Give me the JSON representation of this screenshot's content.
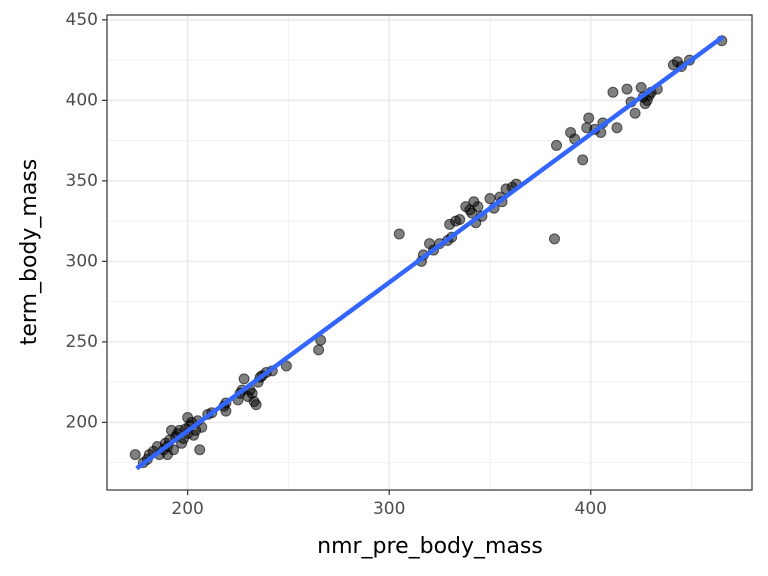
{
  "chart_data": {
    "type": "scatter",
    "x_label": "nmr_pre_body_mass",
    "y_label": "term_body_mass",
    "x": [
      174,
      178,
      180,
      181,
      183,
      185,
      186,
      188,
      189,
      190,
      190,
      191,
      192,
      193,
      194,
      195,
      196,
      197,
      198,
      199,
      200,
      200,
      201,
      202,
      203,
      204,
      205,
      206,
      207,
      210,
      212,
      218,
      219,
      219,
      225,
      226,
      227,
      228,
      230,
      231,
      232,
      233,
      234,
      235,
      236,
      237,
      239,
      242,
      249,
      265,
      266,
      305,
      316,
      317,
      320,
      322,
      325,
      329,
      330,
      331,
      333,
      335,
      338,
      340,
      341,
      342,
      343,
      344,
      346,
      350,
      352,
      355,
      356,
      358,
      361,
      363,
      382,
      383,
      390,
      392,
      396,
      398,
      399,
      402,
      405,
      406,
      411,
      413,
      418,
      420,
      422,
      425,
      426,
      427,
      428,
      429,
      430,
      433,
      441,
      443,
      445,
      449,
      465
    ],
    "values": [
      180,
      175,
      177,
      180,
      182,
      185,
      180,
      183,
      187,
      180,
      185,
      189,
      195,
      183,
      191,
      193,
      195,
      187,
      190,
      196,
      203,
      193,
      198,
      200,
      192,
      195,
      201,
      183,
      197,
      205,
      206,
      210,
      207,
      212,
      214,
      218,
      220,
      227,
      216,
      220,
      218,
      213,
      211,
      225,
      228,
      229,
      231,
      232,
      235,
      245,
      251,
      317,
      300,
      304,
      311,
      307,
      311,
      313,
      323,
      315,
      325,
      326,
      334,
      332,
      330,
      337,
      324,
      334,
      328,
      339,
      333,
      340,
      337,
      345,
      346,
      348,
      314,
      372,
      380,
      376,
      363,
      383,
      389,
      382,
      380,
      386,
      405,
      383,
      407,
      399,
      392,
      408,
      402,
      398,
      400,
      403,
      405,
      407,
      422,
      424,
      421,
      425,
      437
    ],
    "color": "#000000",
    "trend_line": {
      "x": [
        174.7,
        465.5
      ],
      "y": [
        171.4,
        439.4
      ],
      "color": "#3366FF"
    },
    "xlim": [
      160,
      480
    ],
    "ylim": [
      158,
      453
    ],
    "xticks": [
      200,
      300,
      400
    ],
    "yticks": [
      200,
      250,
      300,
      350,
      400,
      450
    ],
    "grid": true
  }
}
